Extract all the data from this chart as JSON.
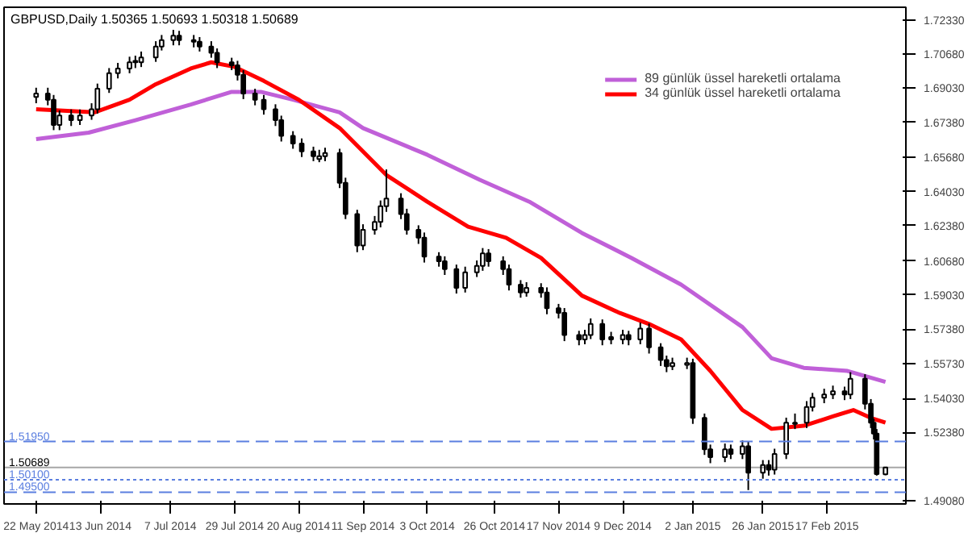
{
  "chart_data": {
    "type": "candlestick",
    "title": "GBPUSD,Daily  1.50365 1.50693 1.50318 1.50689",
    "color": "#000000",
    "x": [
      "2014-05-22",
      "2014-05-26",
      "2014-05-28",
      "2014-05-30",
      "2014-06-03",
      "2014-06-06",
      "2014-06-10",
      "2014-06-12",
      "2014-06-16",
      "2014-06-19",
      "2014-06-23",
      "2014-06-25",
      "2014-06-27",
      "2014-07-02",
      "2014-07-04",
      "2014-07-08",
      "2014-07-10",
      "2014-07-15",
      "2014-07-17",
      "2014-07-21",
      "2014-07-23",
      "2014-07-28",
      "2014-07-30",
      "2014-08-01",
      "2014-08-05",
      "2014-08-08",
      "2014-08-12",
      "2014-08-14",
      "2014-08-18",
      "2014-08-21",
      "2014-08-25",
      "2014-08-27",
      "2014-08-29",
      "2014-09-03",
      "2014-09-05",
      "2014-09-09",
      "2014-09-11",
      "2014-09-15",
      "2014-09-17",
      "2014-09-19",
      "2014-09-24",
      "2014-09-26",
      "2014-09-30",
      "2014-10-02",
      "2014-10-07",
      "2014-10-09",
      "2014-10-13",
      "2014-10-16",
      "2014-10-20",
      "2014-10-22",
      "2014-10-24",
      "2014-10-29",
      "2014-10-31",
      "2014-11-04",
      "2014-11-06",
      "2014-11-11",
      "2014-11-13",
      "2014-11-17",
      "2014-11-19",
      "2014-11-24",
      "2014-11-26",
      "2014-11-28",
      "2014-12-02",
      "2014-12-05",
      "2014-12-09",
      "2014-12-11",
      "2014-12-15",
      "2014-12-18",
      "2014-12-22",
      "2014-12-24",
      "2014-12-26",
      "2014-12-31",
      "2015-01-02",
      "2015-01-06",
      "2015-01-08",
      "2015-01-13",
      "2015-01-15",
      "2015-01-19",
      "2015-01-21",
      "2015-01-26",
      "2015-01-28",
      "2015-01-30",
      "2015-02-03",
      "2015-02-06",
      "2015-02-10",
      "2015-02-12",
      "2015-02-16",
      "2015-02-19",
      "2015-02-23",
      "2015-02-25",
      "2015-03-02",
      "2015-03-04",
      "2015-03-05",
      "2015-03-06",
      "2015-03-09"
    ],
    "ohlc": [
      [
        1.686,
        1.6905,
        1.683,
        1.6877
      ],
      [
        1.6877,
        1.6905,
        1.682,
        1.6847
      ],
      [
        1.6847,
        1.687,
        1.67,
        1.6725
      ],
      [
        1.6725,
        1.6795,
        1.67,
        1.6771
      ],
      [
        1.6771,
        1.68,
        1.672,
        1.6748
      ],
      [
        1.6748,
        1.68,
        1.6725,
        1.6771
      ],
      [
        1.6771,
        1.683,
        1.675,
        1.6801
      ],
      [
        1.6801,
        1.6925,
        1.678,
        1.69
      ],
      [
        1.69,
        1.7,
        1.688,
        1.6975
      ],
      [
        1.6975,
        1.7025,
        1.695,
        1.6998
      ],
      [
        1.6998,
        1.7055,
        1.6975,
        1.7028
      ],
      [
        1.7035,
        1.706,
        1.7,
        1.7028
      ],
      [
        1.7028,
        1.708,
        1.7005,
        1.7051
      ],
      [
        1.7051,
        1.713,
        1.703,
        1.7104
      ],
      [
        1.7104,
        1.716,
        1.7085,
        1.7135
      ],
      [
        1.7135,
        1.7185,
        1.711,
        1.7157
      ],
      [
        1.7157,
        1.718,
        1.711,
        1.7135
      ],
      [
        1.7135,
        1.716,
        1.71,
        1.7127
      ],
      [
        1.7127,
        1.715,
        1.708,
        1.7104
      ],
      [
        1.7104,
        1.713,
        1.705,
        1.7074
      ],
      [
        1.7074,
        1.7095,
        1.7,
        1.7028
      ],
      [
        1.7028,
        1.705,
        1.699,
        1.7013
      ],
      [
        1.7013,
        1.7035,
        1.694,
        1.6968
      ],
      [
        1.6968,
        1.699,
        1.685,
        1.6877
      ],
      [
        1.6877,
        1.69,
        1.682,
        1.6847
      ],
      [
        1.6847,
        1.687,
        1.6775,
        1.6801
      ],
      [
        1.6801,
        1.6825,
        1.672,
        1.6748
      ],
      [
        1.6748,
        1.677,
        1.6645,
        1.6672
      ],
      [
        1.6672,
        1.6695,
        1.661,
        1.6635
      ],
      [
        1.6635,
        1.666,
        1.657,
        1.6597
      ],
      [
        1.6597,
        1.662,
        1.655,
        1.6574
      ],
      [
        1.656,
        1.6605,
        1.6545,
        1.6574
      ],
      [
        1.6574,
        1.6615,
        1.655,
        1.6589
      ],
      [
        1.6589,
        1.661,
        1.642,
        1.6445
      ],
      [
        1.6445,
        1.647,
        1.627,
        1.6294
      ],
      [
        1.6294,
        1.6315,
        1.611,
        1.6142
      ],
      [
        1.6142,
        1.6245,
        1.612,
        1.6218
      ],
      [
        1.6218,
        1.6285,
        1.6195,
        1.6256
      ],
      [
        1.6256,
        1.636,
        1.623,
        1.6332
      ],
      [
        1.6332,
        1.651,
        1.6305,
        1.6369
      ],
      [
        1.6369,
        1.6395,
        1.627,
        1.6294
      ],
      [
        1.6294,
        1.632,
        1.6195,
        1.6218
      ],
      [
        1.6218,
        1.624,
        1.615,
        1.618
      ],
      [
        1.618,
        1.6205,
        1.606,
        1.6089
      ],
      [
        1.6089,
        1.611,
        1.604,
        1.6066
      ],
      [
        1.6066,
        1.609,
        1.6,
        1.6028
      ],
      [
        1.6028,
        1.605,
        1.591,
        1.5938
      ],
      [
        1.5938,
        1.604,
        1.5915,
        1.6013
      ],
      [
        1.6013,
        1.607,
        1.599,
        1.6044
      ],
      [
        1.6044,
        1.613,
        1.602,
        1.6104
      ],
      [
        1.6104,
        1.6125,
        1.604,
        1.6066
      ],
      [
        1.6066,
        1.609,
        1.6,
        1.6028
      ],
      [
        1.6028,
        1.605,
        1.5925,
        1.5953
      ],
      [
        1.5953,
        1.5975,
        1.589,
        1.5915
      ],
      [
        1.5915,
        1.5965,
        1.5895,
        1.5938
      ],
      [
        1.5938,
        1.596,
        1.589,
        1.5915
      ],
      [
        1.5915,
        1.594,
        1.581,
        1.5839
      ],
      [
        1.5839,
        1.586,
        1.579,
        1.5817
      ],
      [
        1.5817,
        1.584,
        1.568,
        1.571
      ],
      [
        1.571,
        1.573,
        1.566,
        1.5688
      ],
      [
        1.5688,
        1.5735,
        1.5665,
        1.571
      ],
      [
        1.571,
        1.579,
        1.569,
        1.5763
      ],
      [
        1.5763,
        1.5785,
        1.566,
        1.5688
      ],
      [
        1.57,
        1.5725,
        1.5665,
        1.5688
      ],
      [
        1.5688,
        1.5735,
        1.5665,
        1.571
      ],
      [
        1.571,
        1.573,
        1.566,
        1.5688
      ],
      [
        1.5688,
        1.577,
        1.5665,
        1.5741
      ],
      [
        1.5741,
        1.5765,
        1.562,
        1.565
      ],
      [
        1.565,
        1.567,
        1.556,
        1.5589
      ],
      [
        1.5589,
        1.561,
        1.553,
        1.5559
      ],
      [
        1.5559,
        1.56,
        1.554,
        1.5574
      ],
      [
        1.5565,
        1.56,
        1.5545,
        1.5574
      ],
      [
        1.5574,
        1.5595,
        1.528,
        1.5309
      ],
      [
        1.5309,
        1.533,
        1.513,
        1.5157
      ],
      [
        1.5157,
        1.518,
        1.509,
        1.5119
      ],
      [
        1.5119,
        1.5185,
        1.5095,
        1.5157
      ],
      [
        1.5157,
        1.518,
        1.511,
        1.5135
      ],
      [
        1.5135,
        1.52,
        1.511,
        1.5172
      ],
      [
        1.5172,
        1.5195,
        1.496,
        1.5044
      ],
      [
        1.5044,
        1.5105,
        1.5015,
        1.5081
      ],
      [
        1.5081,
        1.5105,
        1.503,
        1.5059
      ],
      [
        1.5059,
        1.516,
        1.5035,
        1.5135
      ],
      [
        1.5135,
        1.531,
        1.511,
        1.5286
      ],
      [
        1.528,
        1.533,
        1.5255,
        1.5286
      ],
      [
        1.5286,
        1.539,
        1.526,
        1.5362
      ],
      [
        1.5362,
        1.543,
        1.534,
        1.5407
      ],
      [
        1.5407,
        1.545,
        1.538,
        1.5422
      ],
      [
        1.5422,
        1.5465,
        1.54,
        1.5438
      ],
      [
        1.5438,
        1.546,
        1.5395,
        1.5422
      ],
      [
        1.5422,
        1.553,
        1.54,
        1.5498
      ],
      [
        1.5498,
        1.552,
        1.535,
        1.5377
      ],
      [
        1.5377,
        1.54,
        1.526,
        1.5286
      ],
      [
        1.5286,
        1.5305,
        1.5205,
        1.5233
      ],
      [
        1.5233,
        1.5255,
        1.503,
        1.5037
      ],
      [
        1.50365,
        1.50693,
        1.50318,
        1.50689
      ]
    ],
    "series": [
      {
        "name": "89 günlük üssel hareketli ortalama",
        "type": "line",
        "color": "#c060d8",
        "x": [
          "2014-05-22",
          "2014-06-09",
          "2014-06-25",
          "2014-07-14",
          "2014-07-28",
          "2014-08-07",
          "2014-08-18",
          "2014-09-03",
          "2014-09-11",
          "2014-10-03",
          "2014-10-21",
          "2014-11-07",
          "2014-11-25",
          "2014-12-12",
          "2014-12-29",
          "2015-01-19",
          "2015-01-29",
          "2015-02-09",
          "2015-02-24",
          "2015-03-09"
        ],
        "values": [
          1.6657,
          1.6688,
          1.6748,
          1.6824,
          1.6885,
          1.6885,
          1.6847,
          1.6786,
          1.671,
          1.6581,
          1.646,
          1.6354,
          1.6203,
          1.6082,
          1.5953,
          1.5748,
          1.5597,
          1.5551,
          1.5536,
          1.5483
        ]
      },
      {
        "name": "34 günlük üssel hareketli ortalama",
        "type": "line",
        "color": "#ff0000",
        "x": [
          "2014-05-22",
          "2014-06-11",
          "2014-06-23",
          "2014-07-02",
          "2014-07-14",
          "2014-07-21",
          "2014-07-29",
          "2014-08-08",
          "2014-08-20",
          "2014-09-03",
          "2014-09-19",
          "2014-10-03",
          "2014-10-17",
          "2014-10-30",
          "2014-11-11",
          "2014-11-25",
          "2014-12-08",
          "2014-12-18",
          "2014-12-29",
          "2015-01-08",
          "2015-01-19",
          "2015-01-29",
          "2015-02-09",
          "2015-02-19",
          "2015-02-26",
          "2015-03-04",
          "2015-03-09"
        ],
        "values": [
          1.6801,
          1.6786,
          1.6847,
          1.6922,
          1.6998,
          1.7028,
          1.7006,
          1.6938,
          1.6847,
          1.671,
          1.6483,
          1.6354,
          1.6233,
          1.618,
          1.6082,
          1.59,
          1.5816,
          1.5763,
          1.5688,
          1.5536,
          1.5347,
          1.5256,
          1.5271,
          1.5316,
          1.5347,
          1.5309,
          1.5286
        ]
      }
    ],
    "xlim": [
      "2014-05-11",
      "2015-03-16"
    ],
    "ylim": [
      1.4893,
      1.7294
    ],
    "xticks": [
      {
        "value": "2014-05-22",
        "label": "22 May 2014"
      },
      {
        "value": "2014-06-13",
        "label": "13 Jun 2014"
      },
      {
        "value": "2014-07-07",
        "label": "7 Jul 2014"
      },
      {
        "value": "2014-07-29",
        "label": "29 Jul 2014"
      },
      {
        "value": "2014-08-20",
        "label": "20 Aug 2014"
      },
      {
        "value": "2014-09-11",
        "label": "11 Sep 2014"
      },
      {
        "value": "2014-10-03",
        "label": "3 Oct 2014"
      },
      {
        "value": "2014-10-26",
        "label": "26 Oct 2014"
      },
      {
        "value": "2014-11-17",
        "label": "17 Nov 2014"
      },
      {
        "value": "2014-12-09",
        "label": "9 Dec 2014"
      },
      {
        "value": "2015-01-02",
        "label": "2 Jan 2015"
      },
      {
        "value": "2015-01-26",
        "label": "26 Jan 2015"
      },
      {
        "value": "2015-02-17",
        "label": "17 Feb 2015"
      }
    ],
    "yticks": [
      {
        "value": 1.7233,
        "label": "1.72330"
      },
      {
        "value": 1.7068,
        "label": "1.70680"
      },
      {
        "value": 1.6903,
        "label": "1.69030"
      },
      {
        "value": 1.6738,
        "label": "1.67380"
      },
      {
        "value": 1.6568,
        "label": "1.65680"
      },
      {
        "value": 1.6403,
        "label": "1.64030"
      },
      {
        "value": 1.6238,
        "label": "1.62380"
      },
      {
        "value": 1.6068,
        "label": "1.60680"
      },
      {
        "value": 1.5903,
        "label": "1.59030"
      },
      {
        "value": 1.5738,
        "label": "1.57380"
      },
      {
        "value": 1.5573,
        "label": "1.55730"
      },
      {
        "value": 1.5403,
        "label": "1.54030"
      },
      {
        "value": 1.5238,
        "label": "1.52380"
      },
      {
        "value": 1.4908,
        "label": "1.49080"
      }
    ],
    "ref_lines": [
      {
        "axis": "y",
        "value": 1.5195,
        "label": "1.51950",
        "color": "#5b7fe0",
        "line_style": "dashed"
      },
      {
        "axis": "y",
        "value": 1.501,
        "label": "1.50100",
        "color": "#5b7fe0",
        "line_style": "dotted"
      },
      {
        "axis": "y",
        "value": 1.495,
        "label": "1.49500",
        "color": "#5b7fe0",
        "line_style": "dashed"
      },
      {
        "axis": "y",
        "value": 1.50689,
        "label": "1.50689",
        "color": "#000000",
        "line_style": "solid"
      }
    ],
    "grid": false,
    "legend": "top right"
  }
}
